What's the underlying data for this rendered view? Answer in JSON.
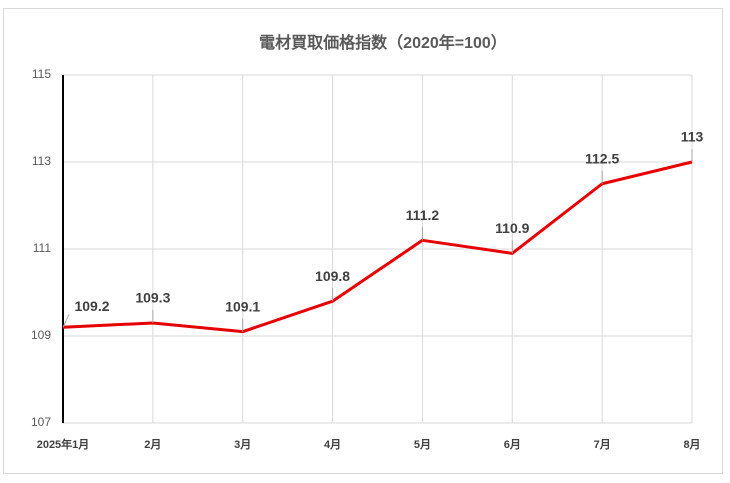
{
  "chart_data": {
    "type": "line",
    "title": "電材買取価格指数（2020年=100）",
    "categories": [
      "2025年1月",
      "2月",
      "3月",
      "4月",
      "5月",
      "6月",
      "7月",
      "8月"
    ],
    "values": [
      109.2,
      109.3,
      109.1,
      109.8,
      111.2,
      110.9,
      112.5,
      113
    ],
    "color": "#e60000",
    "ylim": [
      107,
      115
    ],
    "yticks": [
      107,
      109,
      111,
      113,
      115
    ],
    "grid": true
  }
}
